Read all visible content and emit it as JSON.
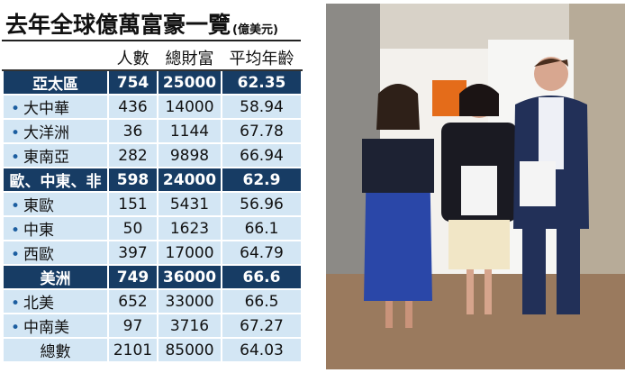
{
  "title": "去年全球億萬富豪一覽",
  "unit": "(億美元)",
  "table": {
    "columns": [
      "人數",
      "總財富",
      "平均年齡"
    ],
    "groups": [
      {
        "name": "亞太區",
        "values": [
          "754",
          "25000",
          "62.35"
        ],
        "items": [
          {
            "name": "大中華",
            "values": [
              "436",
              "14000",
              "58.94"
            ]
          },
          {
            "name": "大洋洲",
            "values": [
              "36",
              "1144",
              "67.78"
            ]
          },
          {
            "name": "東南亞",
            "values": [
              "282",
              "9898",
              "66.94"
            ]
          }
        ]
      },
      {
        "name": "歐、中東、非",
        "values": [
          "598",
          "24000",
          "62.9"
        ],
        "items": [
          {
            "name": "東歐",
            "values": [
              "151",
              "5431",
              "56.96"
            ]
          },
          {
            "name": "中東",
            "values": [
              "50",
              "1623",
              "66.1"
            ]
          },
          {
            "name": "西歐",
            "values": [
              "397",
              "17000",
              "64.79"
            ]
          }
        ]
      },
      {
        "name": "美洲",
        "values": [
          "749",
          "36000",
          "66.6"
        ],
        "items": [
          {
            "name": "北美",
            "values": [
              "652",
              "33000",
              "66.5"
            ]
          },
          {
            "name": "中南美",
            "values": [
              "97",
              "3716",
              "67.27"
            ]
          }
        ]
      }
    ],
    "total": {
      "name": "總數",
      "values": [
        "2101",
        "85000",
        "64.03"
      ]
    }
  }
}
